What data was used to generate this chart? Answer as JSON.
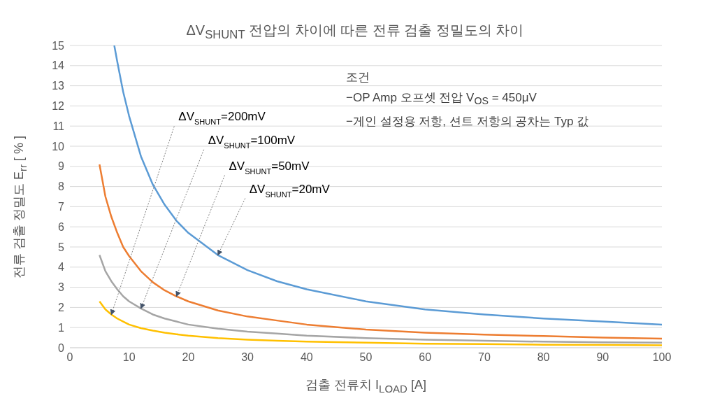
{
  "chart_data": {
    "type": "line",
    "title": "ΔV$_{SHUNT}$  전압의 차이에 따른 전류 검출 정밀도의 차이",
    "xlabel": "검출 전류치 I$_{LOAD}$ [A]",
    "ylabel": "전류 검출 정밀도  E$_{rr}$ [ % ]",
    "xlim": [
      0,
      100
    ],
    "xticks": [
      0,
      10,
      20,
      30,
      40,
      50,
      60,
      70,
      80,
      90,
      100
    ],
    "ylim": [
      0,
      15
    ],
    "yticks": [
      0,
      1,
      2,
      3,
      4,
      5,
      6,
      7,
      8,
      9,
      10,
      11,
      12,
      13,
      14,
      15
    ],
    "grid": "y",
    "marker": "none",
    "line_style": "solid",
    "series": [
      {
        "color": "#5b9bd5",
        "x": [
          7.5,
          8,
          9,
          10,
          12,
          14,
          16,
          18,
          20,
          25,
          30,
          35,
          40,
          50,
          60,
          70,
          80,
          90,
          100
        ],
        "values": [
          15,
          14.2,
          12.7,
          11.5,
          9.5,
          8.1,
          7.1,
          6.3,
          5.7,
          4.6,
          3.85,
          3.3,
          2.9,
          2.3,
          1.9,
          1.65,
          1.45,
          1.3,
          1.15
        ]
      },
      {
        "color": "#ed7d31",
        "x": [
          5,
          6,
          7,
          8,
          9,
          10,
          12,
          14,
          16,
          18,
          20,
          25,
          30,
          35,
          40,
          50,
          60,
          70,
          80,
          90,
          100
        ],
        "values": [
          9.1,
          7.5,
          6.5,
          5.7,
          5.0,
          4.55,
          3.8,
          3.25,
          2.85,
          2.55,
          2.3,
          1.85,
          1.55,
          1.35,
          1.15,
          0.9,
          0.75,
          0.65,
          0.58,
          0.5,
          0.45
        ]
      },
      {
        "color": "#a5a5a5",
        "x": [
          5,
          6,
          7,
          8,
          9,
          10,
          12,
          14,
          16,
          18,
          20,
          25,
          30,
          35,
          40,
          50,
          60,
          70,
          80,
          90,
          100
        ],
        "values": [
          4.6,
          3.8,
          3.3,
          2.9,
          2.55,
          2.3,
          1.95,
          1.65,
          1.45,
          1.3,
          1.15,
          0.95,
          0.8,
          0.7,
          0.6,
          0.48,
          0.4,
          0.35,
          0.3,
          0.27,
          0.25
        ]
      },
      {
        "color": "#ffc000",
        "x": [
          5,
          6,
          7,
          8,
          9,
          10,
          12,
          14,
          16,
          18,
          20,
          25,
          30,
          35,
          40,
          50,
          60,
          70,
          80,
          90,
          100
        ],
        "values": [
          2.3,
          1.9,
          1.65,
          1.45,
          1.3,
          1.15,
          0.97,
          0.85,
          0.75,
          0.67,
          0.6,
          0.48,
          0.4,
          0.35,
          0.3,
          0.25,
          0.2,
          0.18,
          0.15,
          0.14,
          0.12
        ]
      }
    ],
    "annotations": [
      {
        "text": "ΔV$_{SHUNT}$=200mV",
        "x": 7,
        "y": 1.65
      },
      {
        "text": "ΔV$_{SHUNT}$=100mV",
        "x": 12,
        "y": 1.95
      },
      {
        "text": "ΔV$_{SHUNT}$=50mV",
        "x": 18,
        "y": 2.55
      },
      {
        "text": "ΔV$_{SHUNT}$=20mV",
        "x": 25,
        "y": 4.6
      },
      "조건",
      "−OP Amp 오프셋 전압 V$_{OS}$ = 450μV",
      "−게인 설정용 저항, 션트 저항의 공차는 Typ 값"
    ]
  }
}
